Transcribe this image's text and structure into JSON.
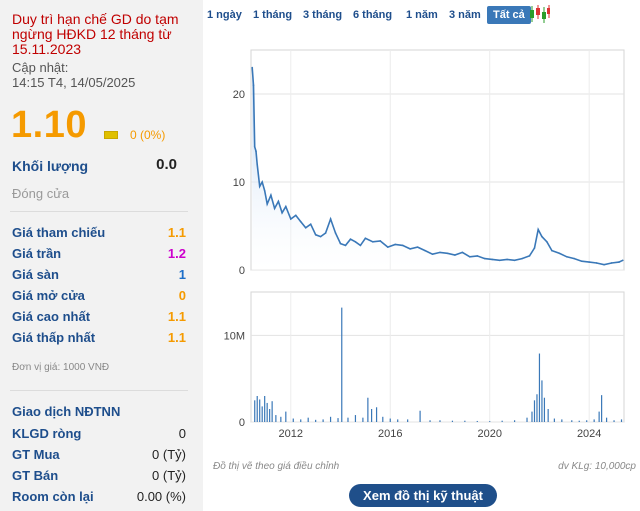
{
  "left": {
    "status": "Duy trì hạn chế GD do tạm ngừng HĐKD 12 tháng từ 15.11.2023",
    "updated_label": "Cập nhật:",
    "updated_time": "14:15 T4, 14/05/2025",
    "price": "1.10",
    "change": "0 (0%)",
    "volume_label": "Khối lượng",
    "volume_value": "0.0",
    "close_label": "Đóng cửa",
    "rows": [
      {
        "label": "Giá tham chiếu",
        "value": "1.1",
        "color": "#f59a00"
      },
      {
        "label": "Giá trần",
        "value": "1.2",
        "color": "#cc00cc"
      },
      {
        "label": "Giá sàn",
        "value": "1",
        "color": "#1e6fc9"
      },
      {
        "label": "Giá mở cửa",
        "value": "0",
        "color": "#f59a00"
      },
      {
        "label": "Giá cao nhất",
        "value": "1.1",
        "color": "#f59a00"
      },
      {
        "label": "Giá thấp nhất",
        "value": "1.1",
        "color": "#f59a00"
      }
    ],
    "unit": "Đơn vị giá: 1000 VNĐ",
    "foreign": {
      "title": "Giao dịch NĐTNN",
      "rows": [
        {
          "label": "KLGD ròng",
          "value": "0"
        },
        {
          "label": "GT Mua",
          "value": "0 (Tỷ)"
        },
        {
          "label": "GT Bán",
          "value": "0 (Tỷ)"
        },
        {
          "label": "Room còn lại",
          "value": "0.00 (%)"
        }
      ]
    }
  },
  "tabs": [
    "1 ngày",
    "1 tháng",
    "3 tháng",
    "6 tháng",
    "1 năm",
    "3 năm",
    "Tất cả"
  ],
  "active_tab": 6,
  "footer": {
    "note": "Đồ thị vẽ theo giá điều chỉnh",
    "volume_unit": "dv KLg: 10,000cp",
    "button": "Xem đồ thị kỹ thuật"
  },
  "colors": {
    "line": "#3a78b8",
    "area_top": "#b3cff0",
    "bar": "#3a78b8",
    "price": "#f59a00"
  },
  "chart_data": [
    {
      "type": "area",
      "title": "",
      "ylim": [
        0,
        25
      ],
      "yticks": [
        0,
        10,
        20
      ],
      "xlim": [
        2010.4,
        2025.4
      ],
      "xticks": [
        2012,
        2016,
        2020,
        2024
      ],
      "grid": true,
      "x": [
        2010.45,
        2010.5,
        2010.55,
        2010.6,
        2010.65,
        2010.75,
        2010.85,
        2010.95,
        2011.05,
        2011.2,
        2011.35,
        2011.5,
        2011.65,
        2011.8,
        2012.0,
        2012.2,
        2012.4,
        2012.6,
        2012.8,
        2013.0,
        2013.2,
        2013.4,
        2013.6,
        2013.8,
        2014.0,
        2014.2,
        2014.4,
        2014.6,
        2014.8,
        2015.0,
        2015.3,
        2015.6,
        2015.9,
        2016.2,
        2016.5,
        2016.8,
        2017.1,
        2017.4,
        2017.7,
        2018.0,
        2018.3,
        2018.6,
        2018.9,
        2019.2,
        2019.5,
        2019.8,
        2020.1,
        2020.4,
        2020.7,
        2021.0,
        2021.3,
        2021.6,
        2021.8,
        2021.95,
        2022.1,
        2022.3,
        2022.5,
        2022.8,
        2023.1,
        2023.4,
        2023.7,
        2024.0,
        2024.3,
        2024.6,
        2024.9,
        2025.2,
        2025.35
      ],
      "values": [
        23,
        21,
        14,
        13.5,
        12,
        9.5,
        10,
        9,
        7.5,
        8.5,
        7,
        7.8,
        6.5,
        7.2,
        5.8,
        6.2,
        5.5,
        4.8,
        5.2,
        4.0,
        3.8,
        4.2,
        5.8,
        4.2,
        3.0,
        2.8,
        3.5,
        3.2,
        2.8,
        3.6,
        3.2,
        3.3,
        2.6,
        2.9,
        2.8,
        2.4,
        2.6,
        2.2,
        1.8,
        2.0,
        1.9,
        1.7,
        2.0,
        1.5,
        1.6,
        1.3,
        1.2,
        1.1,
        1.2,
        1.1,
        1.3,
        1.6,
        2.5,
        4.6,
        3.8,
        3.2,
        2.2,
        1.9,
        1.5,
        1.3,
        1.0,
        0.9,
        0.8,
        0.6,
        0.8,
        0.9,
        1.1
      ]
    },
    {
      "type": "bar",
      "title": "",
      "ylim": [
        0,
        15000000
      ],
      "yticks": [
        0,
        10000000
      ],
      "ytick_labels": [
        "0",
        "10M"
      ],
      "xlim": [
        2010.4,
        2025.4
      ],
      "xticks": [
        2012,
        2016,
        2020,
        2024
      ],
      "grid": true,
      "x": [
        2010.55,
        2010.65,
        2010.75,
        2010.85,
        2010.95,
        2011.05,
        2011.15,
        2011.25,
        2011.4,
        2011.6,
        2011.8,
        2012.1,
        2012.4,
        2012.7,
        2013.0,
        2013.3,
        2013.6,
        2013.9,
        2014.05,
        2014.3,
        2014.6,
        2014.9,
        2015.1,
        2015.25,
        2015.45,
        2015.7,
        2016.0,
        2016.3,
        2016.7,
        2017.2,
        2017.6,
        2018.0,
        2018.5,
        2019.0,
        2019.5,
        2020.0,
        2020.5,
        2021.0,
        2021.5,
        2021.7,
        2021.8,
        2021.9,
        2022.0,
        2022.1,
        2022.2,
        2022.35,
        2022.6,
        2022.9,
        2023.3,
        2023.6,
        2023.9,
        2024.2,
        2024.4,
        2024.5,
        2024.7,
        2025.0,
        2025.3
      ],
      "values": [
        2500000,
        3000000,
        2600000,
        1800000,
        3000000,
        2200000,
        1500000,
        2400000,
        800000,
        600000,
        1200000,
        400000,
        300000,
        500000,
        250000,
        300000,
        600000,
        450000,
        13200000,
        500000,
        800000,
        500000,
        2800000,
        1500000,
        1700000,
        600000,
        400000,
        300000,
        300000,
        1300000,
        200000,
        200000,
        150000,
        150000,
        120000,
        100000,
        150000,
        200000,
        500000,
        1200000,
        2500000,
        3200000,
        7900000,
        4800000,
        2800000,
        1500000,
        400000,
        300000,
        200000,
        150000,
        200000,
        300000,
        1200000,
        3100000,
        500000,
        200000,
        300000
      ]
    }
  ]
}
